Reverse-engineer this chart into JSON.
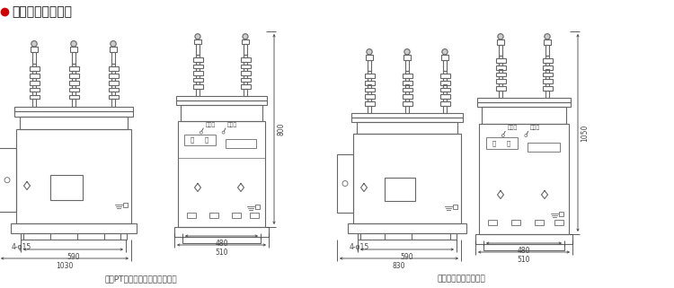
{
  "title": "外形及安装尺寸图",
  "title_bullet_color": "#cc0000",
  "bg_color": "#ffffff",
  "line_color": "#666666",
  "dim_color": "#444444",
  "label1": "电子PT型断路器外形及安装尺寸",
  "label2": "重合器外形及安装尺寸",
  "dim_800": "800",
  "dim_1050": "1050",
  "dim_590_1": "590",
  "dim_1030": "1030",
  "dim_480_1": "480",
  "dim_510_1": "510",
  "dim_590_2": "590",
  "dim_830": "830",
  "dim_480_2": "480",
  "dim_510_2": "510",
  "note_holes1": "4-φ15",
  "note_holes2": "4-φ15",
  "panel_text_stored": "已储能",
  "panel_text_fen": "分",
  "panel_text_he": "合",
  "panel_text_unstored": "未储能",
  "font_size_title": 10,
  "font_size_label": 6.5,
  "font_size_dim": 5.5,
  "font_size_panel": 4.5
}
